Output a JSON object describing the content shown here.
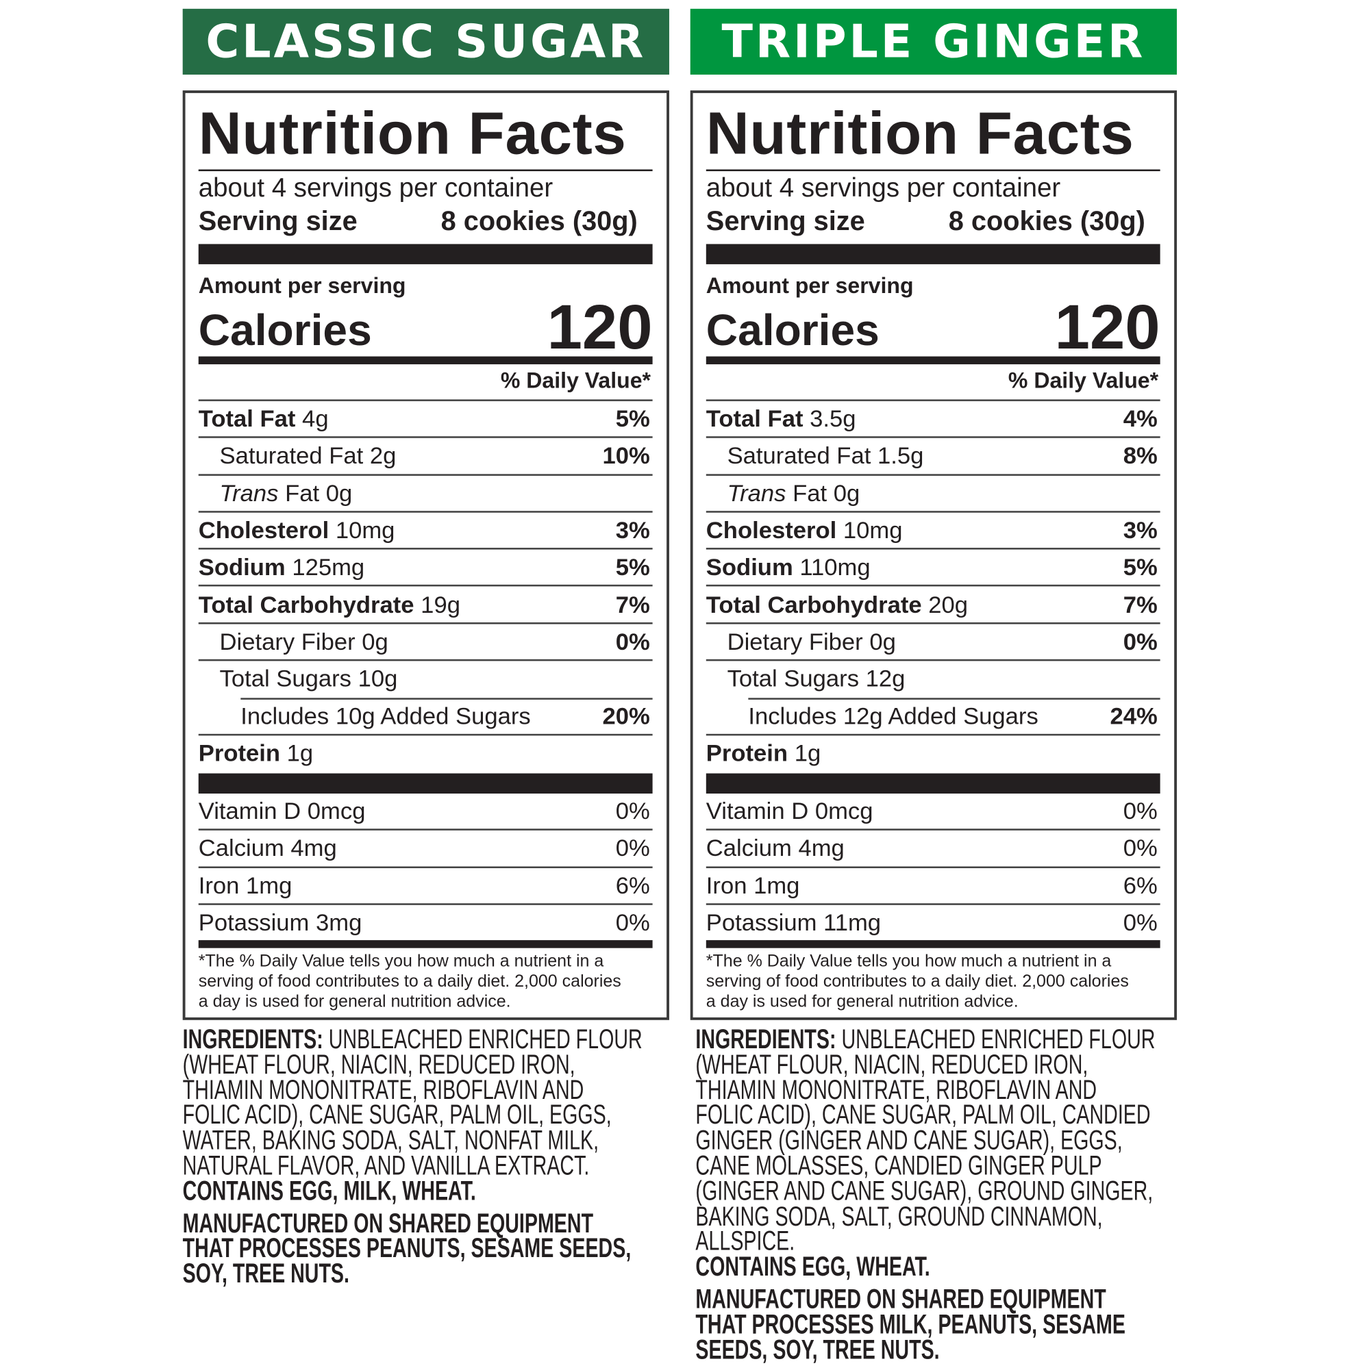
{
  "colors": {
    "classic_banner": "#256d45",
    "ginger_banner": "#00963f",
    "text": "#231f20"
  },
  "labels": [
    {
      "banner": "CLASSIC SUGAR",
      "title": "Nutrition Facts",
      "servings": "about 4 servings per container",
      "serving_size_label": "Serving size",
      "serving_size_value": "8 cookies (30g)",
      "amount_per_serving": "Amount per serving",
      "calories_label": "Calories",
      "calories": "120",
      "dv_header": "% Daily Value*",
      "nutrients": [
        {
          "name": "Total Fat",
          "amount": "4g",
          "dv": "5%",
          "bold": true,
          "indent": 0
        },
        {
          "name": "Saturated Fat",
          "amount": "2g",
          "dv": "10%",
          "bold": false,
          "indent": 1
        },
        {
          "name": "Trans",
          "name_rest": "Fat",
          "amount": "0g",
          "dv": "",
          "bold": false,
          "indent": 1,
          "italic": true
        },
        {
          "name": "Cholesterol",
          "amount": "10mg",
          "dv": "3%",
          "bold": true,
          "indent": 0
        },
        {
          "name": "Sodium",
          "amount": "125mg",
          "dv": "5%",
          "bold": true,
          "indent": 0
        },
        {
          "name": "Total Carbohydrate",
          "amount": "19g",
          "dv": "7%",
          "bold": true,
          "indent": 0
        },
        {
          "name": "Dietary Fiber",
          "amount": "0g",
          "dv": "0%",
          "bold": false,
          "indent": 1
        },
        {
          "name": "Total Sugars",
          "amount": "10g",
          "dv": "",
          "bold": false,
          "indent": 1
        },
        {
          "name": "Includes 10g Added Sugars",
          "amount": "",
          "dv": "20%",
          "bold": false,
          "indent": 2
        },
        {
          "name": "Protein",
          "amount": "1g",
          "dv": "",
          "bold": true,
          "indent": 0
        }
      ],
      "vitamins": [
        {
          "name": "Vitamin D 0mcg",
          "dv": "0%"
        },
        {
          "name": "Calcium 4mg",
          "dv": "0%"
        },
        {
          "name": "Iron 1mg",
          "dv": "6%"
        },
        {
          "name": "Potassium 3mg",
          "dv": "0%"
        }
      ],
      "footnote": [
        "*The % Daily Value tells you how much a nutrient in a",
        "serving of food contributes to a daily diet. 2,000 calories",
        "a day is used for general nutrition advice."
      ],
      "ingredients_label": "INGREDIENTS:",
      "ingredients_lines": [
        " UNBLEACHED ENRICHED FLOUR",
        "(WHEAT FLOUR, NIACIN, REDUCED IRON,",
        "THIAMIN MONONITRATE, RIBOFLAVIN AND",
        "FOLIC ACID), CANE SUGAR, PALM OIL, EGGS,",
        "WATER, BAKING SODA, SALT, NONFAT MILK,",
        "NATURAL FLAVOR, AND VANILLA EXTRACT."
      ],
      "contains": "CONTAINS EGG, MILK, WHEAT.",
      "manufactured_lines": [
        "MANUFACTURED ON SHARED EQUIPMENT",
        "THAT PROCESSES PEANUTS, SESAME SEEDS,",
        "SOY, TREE NUTS."
      ]
    },
    {
      "banner": "TRIPLE GINGER",
      "title": "Nutrition Facts",
      "servings": "about 4 servings per container",
      "serving_size_label": "Serving size",
      "serving_size_value": "8 cookies (30g)",
      "amount_per_serving": "Amount per serving",
      "calories_label": "Calories",
      "calories": "120",
      "dv_header": "% Daily Value*",
      "nutrients": [
        {
          "name": "Total Fat",
          "amount": "3.5g",
          "dv": "4%",
          "bold": true,
          "indent": 0
        },
        {
          "name": "Saturated Fat",
          "amount": "1.5g",
          "dv": "8%",
          "bold": false,
          "indent": 1
        },
        {
          "name": "Trans",
          "name_rest": "Fat",
          "amount": "0g",
          "dv": "",
          "bold": false,
          "indent": 1,
          "italic": true
        },
        {
          "name": "Cholesterol",
          "amount": "10mg",
          "dv": "3%",
          "bold": true,
          "indent": 0
        },
        {
          "name": "Sodium",
          "amount": "110mg",
          "dv": "5%",
          "bold": true,
          "indent": 0
        },
        {
          "name": "Total Carbohydrate",
          "amount": "20g",
          "dv": "7%",
          "bold": true,
          "indent": 0
        },
        {
          "name": "Dietary Fiber",
          "amount": "0g",
          "dv": "0%",
          "bold": false,
          "indent": 1
        },
        {
          "name": "Total Sugars",
          "amount": "12g",
          "dv": "",
          "bold": false,
          "indent": 1
        },
        {
          "name": "Includes 12g Added Sugars",
          "amount": "",
          "dv": "24%",
          "bold": false,
          "indent": 2
        },
        {
          "name": "Protein",
          "amount": "1g",
          "dv": "",
          "bold": true,
          "indent": 0
        }
      ],
      "vitamins": [
        {
          "name": "Vitamin D 0mcg",
          "dv": "0%"
        },
        {
          "name": "Calcium 4mg",
          "dv": "0%"
        },
        {
          "name": "Iron 1mg",
          "dv": "6%"
        },
        {
          "name": "Potassium 11mg",
          "dv": "0%"
        }
      ],
      "footnote": [
        "*The % Daily Value tells you how much a nutrient in a",
        "serving of food contributes to a daily diet. 2,000 calories",
        "a day is used for general nutrition advice."
      ],
      "ingredients_label": "INGREDIENTS:",
      "ingredients_lines": [
        " UNBLEACHED ENRICHED FLOUR",
        "(WHEAT FLOUR, NIACIN, REDUCED IRON,",
        "THIAMIN MONONITRATE, RIBOFLAVIN AND",
        "FOLIC ACID), CANE SUGAR, PALM OIL, CANDIED",
        "GINGER (GINGER AND CANE SUGAR), EGGS,",
        "CANE MOLASSES, CANDIED GINGER PULP",
        "(GINGER AND CANE SUGAR), GROUND GINGER,",
        "BAKING SODA, SALT, GROUND CINNAMON,",
        "ALLSPICE."
      ],
      "contains": "CONTAINS EGG, WHEAT.",
      "manufactured_lines": [
        "MANUFACTURED ON SHARED EQUIPMENT",
        "THAT PROCESSES MILK, PEANUTS, SESAME",
        "SEEDS, SOY, TREE NUTS."
      ]
    }
  ]
}
